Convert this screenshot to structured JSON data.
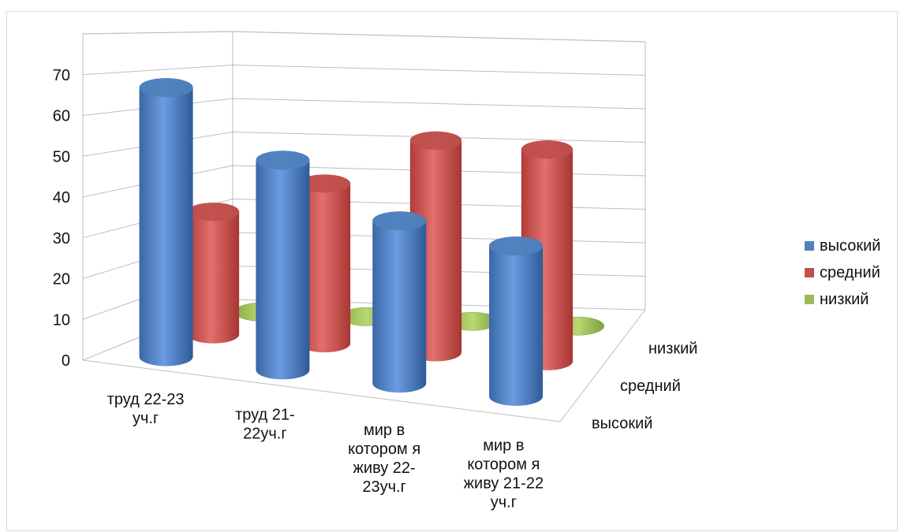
{
  "chart_data": {
    "type": "bar",
    "subtype": "3d-cylinder",
    "title": "",
    "categories": [
      [
        "труд 22-23",
        "уч.г"
      ],
      [
        "труд 21-",
        "22уч.г"
      ],
      [
        "мир в",
        "котором я",
        "живу 22-",
        "23уч.г"
      ],
      [
        "мир в",
        "котором я",
        "живу 21-22",
        "уч.г"
      ]
    ],
    "series": [
      {
        "name": "высокий",
        "color": "#4f81bd",
        "values": [
          68,
          53,
          41,
          38
        ]
      },
      {
        "name": "средний",
        "color": "#c0504d",
        "values": [
          33,
          43,
          57,
          57
        ]
      },
      {
        "name": "низкий",
        "color": "#9bbb59",
        "values": [
          0,
          0,
          0,
          0
        ]
      }
    ],
    "depth_labels": [
      "высокий",
      "средний",
      "низкий"
    ],
    "y_ticks": [
      "0",
      "10",
      "20",
      "30",
      "40",
      "50",
      "60",
      "70"
    ],
    "ylim": [
      0,
      80
    ],
    "grid": true,
    "legend": "right"
  }
}
